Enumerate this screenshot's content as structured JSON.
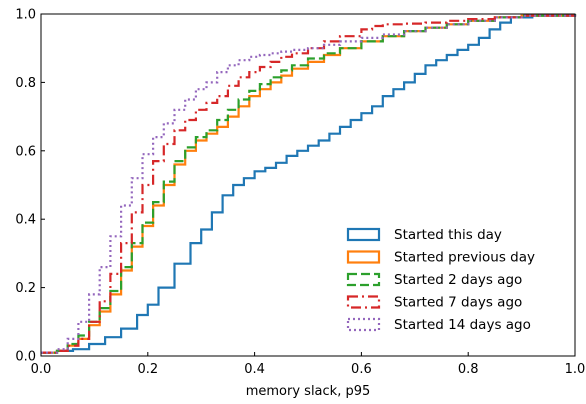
{
  "chart_data": {
    "type": "line",
    "subtype": "ecdf-step",
    "title": "",
    "xlabel": "memory slack, p95",
    "ylabel": "",
    "xlim": [
      0.0,
      1.0
    ],
    "ylim": [
      0.0,
      1.0
    ],
    "x_ticks": [
      "0.0",
      "0.2",
      "0.4",
      "0.6",
      "0.8",
      "1.0"
    ],
    "y_ticks": [
      "0.0",
      "0.2",
      "0.4",
      "0.6",
      "0.8",
      "1.0"
    ],
    "grid": false,
    "legend_position": "lower-right",
    "series": [
      {
        "name": "Started this day",
        "color": "#1f77b4",
        "dash": "solid",
        "points": [
          [
            0.0,
            0.01
          ],
          [
            0.03,
            0.015
          ],
          [
            0.06,
            0.02
          ],
          [
            0.09,
            0.035
          ],
          [
            0.12,
            0.055
          ],
          [
            0.15,
            0.08
          ],
          [
            0.18,
            0.12
          ],
          [
            0.2,
            0.15
          ],
          [
            0.22,
            0.2
          ],
          [
            0.25,
            0.27
          ],
          [
            0.28,
            0.33
          ],
          [
            0.3,
            0.37
          ],
          [
            0.32,
            0.42
          ],
          [
            0.34,
            0.47
          ],
          [
            0.36,
            0.5
          ],
          [
            0.38,
            0.52
          ],
          [
            0.4,
            0.54
          ],
          [
            0.42,
            0.55
          ],
          [
            0.44,
            0.565
          ],
          [
            0.46,
            0.585
          ],
          [
            0.48,
            0.6
          ],
          [
            0.5,
            0.615
          ],
          [
            0.52,
            0.63
          ],
          [
            0.54,
            0.65
          ],
          [
            0.56,
            0.67
          ],
          [
            0.58,
            0.69
          ],
          [
            0.6,
            0.71
          ],
          [
            0.62,
            0.73
          ],
          [
            0.64,
            0.76
          ],
          [
            0.66,
            0.78
          ],
          [
            0.68,
            0.8
          ],
          [
            0.7,
            0.825
          ],
          [
            0.72,
            0.85
          ],
          [
            0.74,
            0.865
          ],
          [
            0.76,
            0.88
          ],
          [
            0.78,
            0.895
          ],
          [
            0.8,
            0.91
          ],
          [
            0.82,
            0.93
          ],
          [
            0.84,
            0.955
          ],
          [
            0.86,
            0.975
          ],
          [
            0.88,
            0.99
          ],
          [
            0.92,
            0.995
          ],
          [
            1.0,
            1.0
          ]
        ]
      },
      {
        "name": "Started previous day",
        "color": "#ff7f0e",
        "dash": "solid",
        "points": [
          [
            0.0,
            0.01
          ],
          [
            0.03,
            0.015
          ],
          [
            0.05,
            0.03
          ],
          [
            0.07,
            0.05
          ],
          [
            0.09,
            0.09
          ],
          [
            0.11,
            0.13
          ],
          [
            0.13,
            0.18
          ],
          [
            0.15,
            0.25
          ],
          [
            0.17,
            0.32
          ],
          [
            0.19,
            0.38
          ],
          [
            0.21,
            0.44
          ],
          [
            0.23,
            0.5
          ],
          [
            0.25,
            0.56
          ],
          [
            0.27,
            0.6
          ],
          [
            0.29,
            0.63
          ],
          [
            0.31,
            0.65
          ],
          [
            0.33,
            0.67
          ],
          [
            0.35,
            0.7
          ],
          [
            0.37,
            0.73
          ],
          [
            0.39,
            0.76
          ],
          [
            0.41,
            0.78
          ],
          [
            0.43,
            0.8
          ],
          [
            0.45,
            0.82
          ],
          [
            0.47,
            0.84
          ],
          [
            0.5,
            0.86
          ],
          [
            0.53,
            0.88
          ],
          [
            0.56,
            0.9
          ],
          [
            0.6,
            0.92
          ],
          [
            0.64,
            0.935
          ],
          [
            0.68,
            0.95
          ],
          [
            0.72,
            0.96
          ],
          [
            0.76,
            0.97
          ],
          [
            0.8,
            0.98
          ],
          [
            0.85,
            0.99
          ],
          [
            0.9,
            0.995
          ],
          [
            1.0,
            1.0
          ]
        ]
      },
      {
        "name": "Started 2 days ago",
        "color": "#2ca02c",
        "dash": "dashed",
        "points": [
          [
            0.0,
            0.01
          ],
          [
            0.03,
            0.015
          ],
          [
            0.05,
            0.035
          ],
          [
            0.07,
            0.06
          ],
          [
            0.09,
            0.1
          ],
          [
            0.11,
            0.14
          ],
          [
            0.13,
            0.19
          ],
          [
            0.15,
            0.26
          ],
          [
            0.17,
            0.33
          ],
          [
            0.19,
            0.39
          ],
          [
            0.21,
            0.45
          ],
          [
            0.23,
            0.51
          ],
          [
            0.25,
            0.57
          ],
          [
            0.27,
            0.61
          ],
          [
            0.29,
            0.64
          ],
          [
            0.31,
            0.66
          ],
          [
            0.33,
            0.69
          ],
          [
            0.35,
            0.72
          ],
          [
            0.37,
            0.75
          ],
          [
            0.39,
            0.775
          ],
          [
            0.41,
            0.795
          ],
          [
            0.43,
            0.815
          ],
          [
            0.45,
            0.835
          ],
          [
            0.47,
            0.85
          ],
          [
            0.5,
            0.87
          ],
          [
            0.53,
            0.885
          ],
          [
            0.56,
            0.9
          ],
          [
            0.6,
            0.92
          ],
          [
            0.64,
            0.935
          ],
          [
            0.68,
            0.95
          ],
          [
            0.72,
            0.96
          ],
          [
            0.76,
            0.97
          ],
          [
            0.8,
            0.98
          ],
          [
            0.85,
            0.99
          ],
          [
            0.9,
            0.995
          ],
          [
            1.0,
            1.0
          ]
        ]
      },
      {
        "name": "Started 7 days ago",
        "color": "#d62728",
        "dash": "dashdot",
        "points": [
          [
            0.0,
            0.01
          ],
          [
            0.03,
            0.015
          ],
          [
            0.05,
            0.03
          ],
          [
            0.07,
            0.05
          ],
          [
            0.09,
            0.1
          ],
          [
            0.11,
            0.16
          ],
          [
            0.13,
            0.24
          ],
          [
            0.15,
            0.33
          ],
          [
            0.17,
            0.42
          ],
          [
            0.19,
            0.5
          ],
          [
            0.21,
            0.57
          ],
          [
            0.23,
            0.62
          ],
          [
            0.25,
            0.66
          ],
          [
            0.27,
            0.69
          ],
          [
            0.29,
            0.72
          ],
          [
            0.31,
            0.74
          ],
          [
            0.33,
            0.76
          ],
          [
            0.35,
            0.79
          ],
          [
            0.37,
            0.815
          ],
          [
            0.39,
            0.83
          ],
          [
            0.41,
            0.845
          ],
          [
            0.43,
            0.86
          ],
          [
            0.45,
            0.875
          ],
          [
            0.47,
            0.885
          ],
          [
            0.5,
            0.9
          ],
          [
            0.53,
            0.92
          ],
          [
            0.56,
            0.935
          ],
          [
            0.6,
            0.955
          ],
          [
            0.62,
            0.965
          ],
          [
            0.64,
            0.97
          ],
          [
            0.68,
            0.972
          ],
          [
            0.72,
            0.975
          ],
          [
            0.76,
            0.98
          ],
          [
            0.8,
            0.985
          ],
          [
            0.85,
            0.99
          ],
          [
            0.9,
            0.995
          ],
          [
            1.0,
            1.0
          ]
        ]
      },
      {
        "name": "Started 14 days ago",
        "color": "#9467bd",
        "dash": "dotted",
        "points": [
          [
            0.0,
            0.01
          ],
          [
            0.03,
            0.02
          ],
          [
            0.05,
            0.05
          ],
          [
            0.07,
            0.1
          ],
          [
            0.09,
            0.18
          ],
          [
            0.11,
            0.26
          ],
          [
            0.13,
            0.35
          ],
          [
            0.15,
            0.44
          ],
          [
            0.17,
            0.52
          ],
          [
            0.19,
            0.59
          ],
          [
            0.21,
            0.64
          ],
          [
            0.23,
            0.68
          ],
          [
            0.25,
            0.72
          ],
          [
            0.27,
            0.75
          ],
          [
            0.29,
            0.78
          ],
          [
            0.31,
            0.8
          ],
          [
            0.33,
            0.83
          ],
          [
            0.35,
            0.85
          ],
          [
            0.37,
            0.865
          ],
          [
            0.39,
            0.875
          ],
          [
            0.41,
            0.88
          ],
          [
            0.43,
            0.885
          ],
          [
            0.45,
            0.89
          ],
          [
            0.47,
            0.895
          ],
          [
            0.5,
            0.9
          ],
          [
            0.53,
            0.91
          ],
          [
            0.56,
            0.92
          ],
          [
            0.6,
            0.93
          ],
          [
            0.64,
            0.94
          ],
          [
            0.68,
            0.95
          ],
          [
            0.72,
            0.96
          ],
          [
            0.76,
            0.97
          ],
          [
            0.8,
            0.98
          ],
          [
            0.85,
            0.99
          ],
          [
            0.9,
            0.995
          ],
          [
            1.0,
            1.0
          ]
        ]
      }
    ]
  }
}
